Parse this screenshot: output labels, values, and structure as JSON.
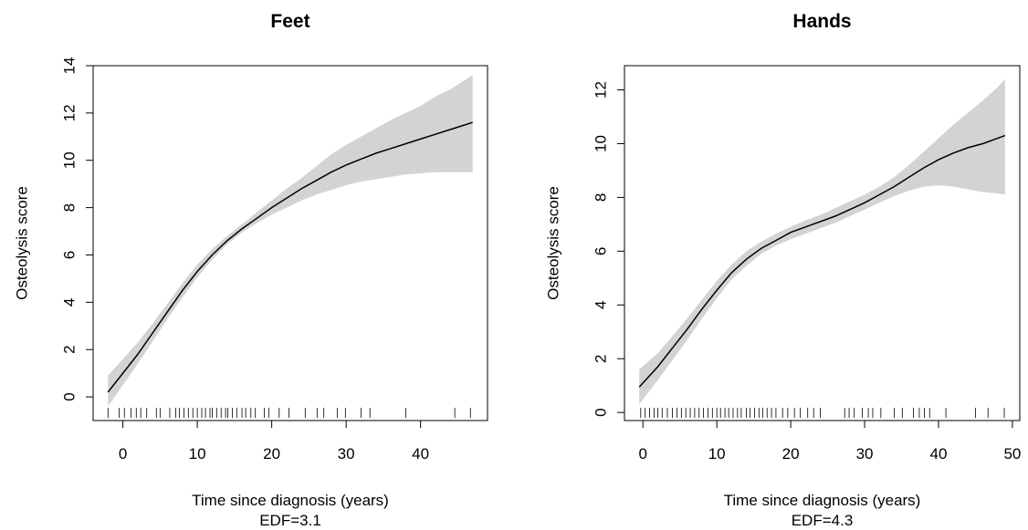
{
  "chart_data": [
    {
      "type": "line",
      "title": "Feet",
      "xlabel": "Time since diagnosis (years)",
      "edf_label": "EDF=3.1",
      "ylabel": "Osteolysis score",
      "xlim": [
        -4,
        49
      ],
      "ylim": [
        -1,
        14
      ],
      "xticks": [
        0,
        10,
        20,
        30,
        40
      ],
      "yticks": [
        0,
        2,
        4,
        6,
        8,
        10,
        12,
        14
      ],
      "series": [
        {
          "x": [
            -2,
            0,
            2,
            4,
            6,
            8,
            10,
            12,
            14,
            16,
            18,
            20,
            22,
            24,
            26,
            28,
            30,
            32,
            34,
            36,
            38,
            40,
            42,
            44,
            46,
            47
          ],
          "fit": [
            0.2,
            1.0,
            1.8,
            2.7,
            3.6,
            4.5,
            5.3,
            6.0,
            6.6,
            7.1,
            7.55,
            8.0,
            8.4,
            8.8,
            9.15,
            9.5,
            9.8,
            10.05,
            10.3,
            10.5,
            10.7,
            10.9,
            11.1,
            11.3,
            11.5,
            11.6
          ],
          "lower": [
            -0.4,
            0.5,
            1.4,
            2.35,
            3.3,
            4.2,
            5.05,
            5.8,
            6.45,
            6.95,
            7.35,
            7.7,
            8.0,
            8.3,
            8.55,
            8.75,
            8.95,
            9.1,
            9.2,
            9.3,
            9.4,
            9.45,
            9.5,
            9.5,
            9.5,
            9.5
          ],
          "upper": [
            0.9,
            1.6,
            2.3,
            3.1,
            3.95,
            4.8,
            5.6,
            6.25,
            6.8,
            7.3,
            7.8,
            8.3,
            8.8,
            9.25,
            9.75,
            10.25,
            10.65,
            11.0,
            11.35,
            11.7,
            12.0,
            12.3,
            12.7,
            13.0,
            13.4,
            13.6
          ]
        }
      ],
      "rug": [
        -2,
        -0.5,
        0.2,
        1.1,
        1.8,
        2.4,
        3.2,
        4.5,
        5.0,
        6.3,
        7.1,
        7.6,
        8.2,
        8.8,
        9.4,
        10.0,
        10.6,
        11.1,
        11.7,
        12.0,
        12.6,
        13.2,
        13.8,
        14.1,
        14.7,
        15.3,
        16.0,
        16.5,
        17.2,
        17.8,
        19.0,
        19.6,
        21.0,
        22.3,
        24.5,
        26.1,
        27.0,
        28.8,
        29.9,
        32.0,
        33.2,
        38.0,
        44.6,
        46.7
      ]
    },
    {
      "type": "line",
      "title": "Hands",
      "xlabel": "Time since diagnosis (years)",
      "edf_label": "EDF=4.3",
      "ylabel": "Osteolysis score",
      "xlim": [
        -2.5,
        51
      ],
      "ylim": [
        -0.3,
        12.9
      ],
      "xticks": [
        0,
        10,
        20,
        30,
        40,
        50
      ],
      "yticks": [
        0,
        2,
        4,
        6,
        8,
        10,
        12
      ],
      "series": [
        {
          "x": [
            -0.5,
            2,
            4,
            6,
            8,
            10,
            12,
            14,
            16,
            18,
            20,
            22,
            24,
            26,
            28,
            30,
            32,
            34,
            36,
            38,
            40,
            42,
            44,
            46,
            48,
            49
          ],
          "fit": [
            0.95,
            1.7,
            2.4,
            3.1,
            3.85,
            4.55,
            5.2,
            5.7,
            6.1,
            6.4,
            6.7,
            6.9,
            7.1,
            7.3,
            7.55,
            7.8,
            8.1,
            8.4,
            8.75,
            9.1,
            9.4,
            9.65,
            9.85,
            10.0,
            10.2,
            10.3
          ],
          "lower": [
            0.3,
            1.2,
            1.95,
            2.7,
            3.5,
            4.25,
            4.95,
            5.45,
            5.9,
            6.2,
            6.45,
            6.65,
            6.85,
            7.05,
            7.3,
            7.55,
            7.8,
            8.05,
            8.25,
            8.4,
            8.45,
            8.4,
            8.3,
            8.2,
            8.15,
            8.1
          ],
          "upper": [
            1.6,
            2.2,
            2.85,
            3.5,
            4.2,
            4.9,
            5.5,
            6.0,
            6.35,
            6.65,
            6.9,
            7.15,
            7.35,
            7.6,
            7.85,
            8.1,
            8.4,
            8.75,
            9.2,
            9.7,
            10.2,
            10.7,
            11.15,
            11.6,
            12.1,
            12.4
          ]
        }
      ],
      "rug": [
        -0.3,
        0.3,
        0.9,
        1.5,
        2.0,
        2.6,
        3.3,
        4.0,
        4.6,
        5.2,
        5.8,
        6.4,
        7.0,
        7.6,
        8.2,
        8.8,
        9.4,
        10.0,
        10.5,
        11.1,
        11.6,
        12.2,
        12.8,
        13.3,
        14.0,
        14.5,
        15.1,
        15.7,
        16.2,
        16.8,
        17.4,
        18.0,
        18.9,
        19.6,
        20.5,
        21.3,
        22.3,
        23.1,
        24.0,
        27.3,
        27.9,
        28.6,
        29.7,
        30.5,
        31.1,
        32.2,
        34.0,
        35.1,
        36.6,
        37.4,
        38.1,
        38.8,
        41.0,
        45.0,
        46.7,
        48.9
      ]
    }
  ]
}
